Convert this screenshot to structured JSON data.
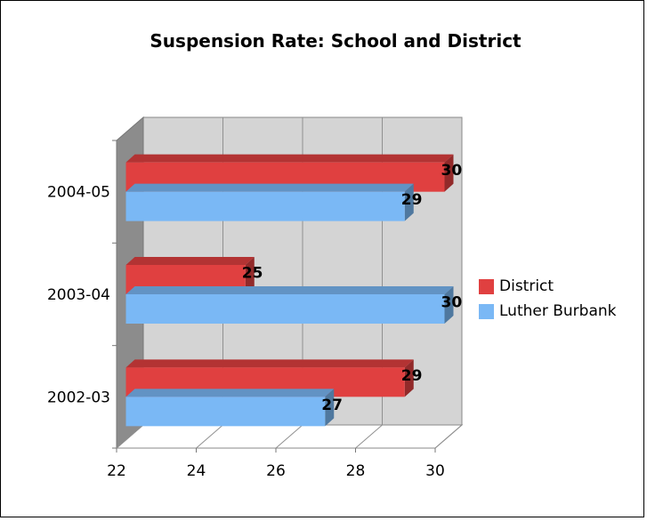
{
  "chart_data": {
    "type": "bar",
    "orientation": "horizontal",
    "style": "3d",
    "title": "Suspension Rate: School and District",
    "categories": [
      "2002-03",
      "2003-04",
      "2004-05"
    ],
    "series": [
      {
        "name": "District",
        "values": [
          29,
          25,
          30
        ],
        "color": "#e04040"
      },
      {
        "name": "Luther Burbank",
        "values": [
          27,
          30,
          29
        ],
        "color": "#7ab8f5"
      }
    ],
    "xticks": [
      "22",
      "24",
      "26",
      "28",
      "30"
    ],
    "xlim": [
      22,
      30
    ],
    "xlabel": "",
    "ylabel": "",
    "grid": true,
    "legend_position": "right"
  }
}
